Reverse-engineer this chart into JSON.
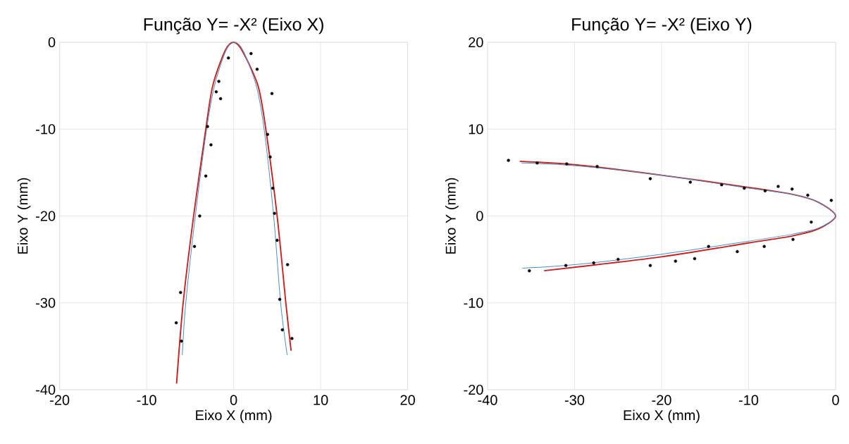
{
  "chart_data": [
    {
      "type": "scatter",
      "title": "Função Y= -X² (Eixo X)",
      "xlabel": "Eixo X (mm)",
      "ylabel": "Eixo Y (mm)",
      "xlim": [
        -20,
        20
      ],
      "ylim": [
        -40,
        0
      ],
      "xticks": [
        -20,
        -10,
        0,
        10,
        20
      ],
      "yticks": [
        -40,
        -30,
        -20,
        -10,
        0
      ],
      "grid": true,
      "series": [
        {
          "color": "#000000",
          "marker": "circle",
          "x": [
            -0.6,
            2.0,
            2.7,
            -1.7,
            -2.0,
            -1.5,
            4.4,
            -3.0,
            3.9,
            -2.6,
            4.2,
            -3.2,
            4.5,
            -3.9,
            4.7,
            -4.5,
            5.0,
            6.2,
            -6.1,
            5.3,
            -6.6,
            5.6,
            -6.0,
            6.7
          ],
          "values": [
            -1.8,
            -1.3,
            -3.1,
            -4.5,
            -5.7,
            -6.5,
            -5.9,
            -9.7,
            -10.6,
            -11.8,
            -13.2,
            -15.4,
            -16.8,
            -20.0,
            -19.7,
            -23.5,
            -22.8,
            -25.6,
            -28.8,
            -29.6,
            -32.3,
            -33.1,
            -34.4,
            -34.1
          ]
        },
        {
          "type": "line",
          "color": "#cc1f1f",
          "marker": "none",
          "x": [
            -6.56,
            -5.8,
            -4.6,
            -3.2,
            -2.4,
            -1.0,
            0,
            1.0,
            2.8,
            3.7,
            5.0,
            6.0,
            6.6
          ],
          "values": [
            -39.3,
            -30,
            -20,
            -10,
            -5,
            -1,
            0,
            -1,
            -5,
            -10,
            -20,
            -30,
            -35.5
          ]
        },
        {
          "type": "line",
          "color": "#4a8fc4",
          "marker": "none",
          "x": [
            -5.9,
            -5.5,
            -4.4,
            -3.1,
            -2.2,
            -0.9,
            0.1,
            1.1,
            2.6,
            3.5,
            4.6,
            5.4,
            6.15
          ],
          "values": [
            -36,
            -30,
            -20,
            -10,
            -5,
            -1,
            0,
            -1,
            -5,
            -10,
            -20,
            -30,
            -36
          ]
        }
      ]
    },
    {
      "type": "scatter",
      "title": "Função Y= -X² (Eixo Y)",
      "xlabel": "Eixo X (mm)",
      "ylabel": "Eixo Y (mm)",
      "xlim": [
        -40,
        0
      ],
      "ylim": [
        -20,
        20
      ],
      "xticks": [
        -40,
        -30,
        -20,
        -10,
        0
      ],
      "yticks": [
        -20,
        -10,
        0,
        10,
        20
      ],
      "grid": true,
      "series": [
        {
          "color": "#000000",
          "marker": "circle",
          "x": [
            -37.6,
            -34.3,
            -30.9,
            -27.4,
            -21.3,
            -16.7,
            -13.1,
            -10.5,
            -8.1,
            -6.6,
            -5.0,
            -3.2,
            -0.5,
            -2.8,
            -4.9,
            -8.2,
            -11.3,
            -14.6,
            -16.2,
            -18.4,
            -21.3,
            -25.0,
            -27.8,
            -31.0,
            -35.2
          ],
          "values": [
            6.4,
            6.1,
            6.0,
            5.7,
            4.3,
            3.9,
            3.6,
            3.2,
            2.9,
            3.4,
            3.1,
            2.4,
            1.8,
            -0.7,
            -2.7,
            -3.5,
            -4.1,
            -3.5,
            -4.9,
            -5.2,
            -5.7,
            -5.0,
            -5.4,
            -5.7,
            -6.3
          ]
        },
        {
          "type": "line",
          "color": "#cc1f1f",
          "marker": "none",
          "x": [
            -36.3,
            -30,
            -20,
            -10,
            -5,
            -2,
            0,
            -2,
            -5,
            -10,
            -20,
            -30,
            -33.5
          ],
          "values": [
            6.3,
            5.9,
            4.7,
            3.3,
            2.5,
            1.6,
            0,
            -1.5,
            -2.3,
            -3.1,
            -4.7,
            -5.9,
            -6.3
          ]
        },
        {
          "type": "line",
          "color": "#4a8fc4",
          "marker": "none",
          "x": [
            -36.1,
            -30,
            -20,
            -10,
            -5,
            -2,
            0,
            -2,
            -5,
            -10,
            -20,
            -30,
            -36.0
          ],
          "values": [
            6.1,
            5.8,
            4.7,
            3.2,
            2.5,
            1.6,
            0,
            -1.4,
            -2.1,
            -2.9,
            -4.4,
            -5.6,
            -6.0
          ]
        }
      ]
    }
  ]
}
